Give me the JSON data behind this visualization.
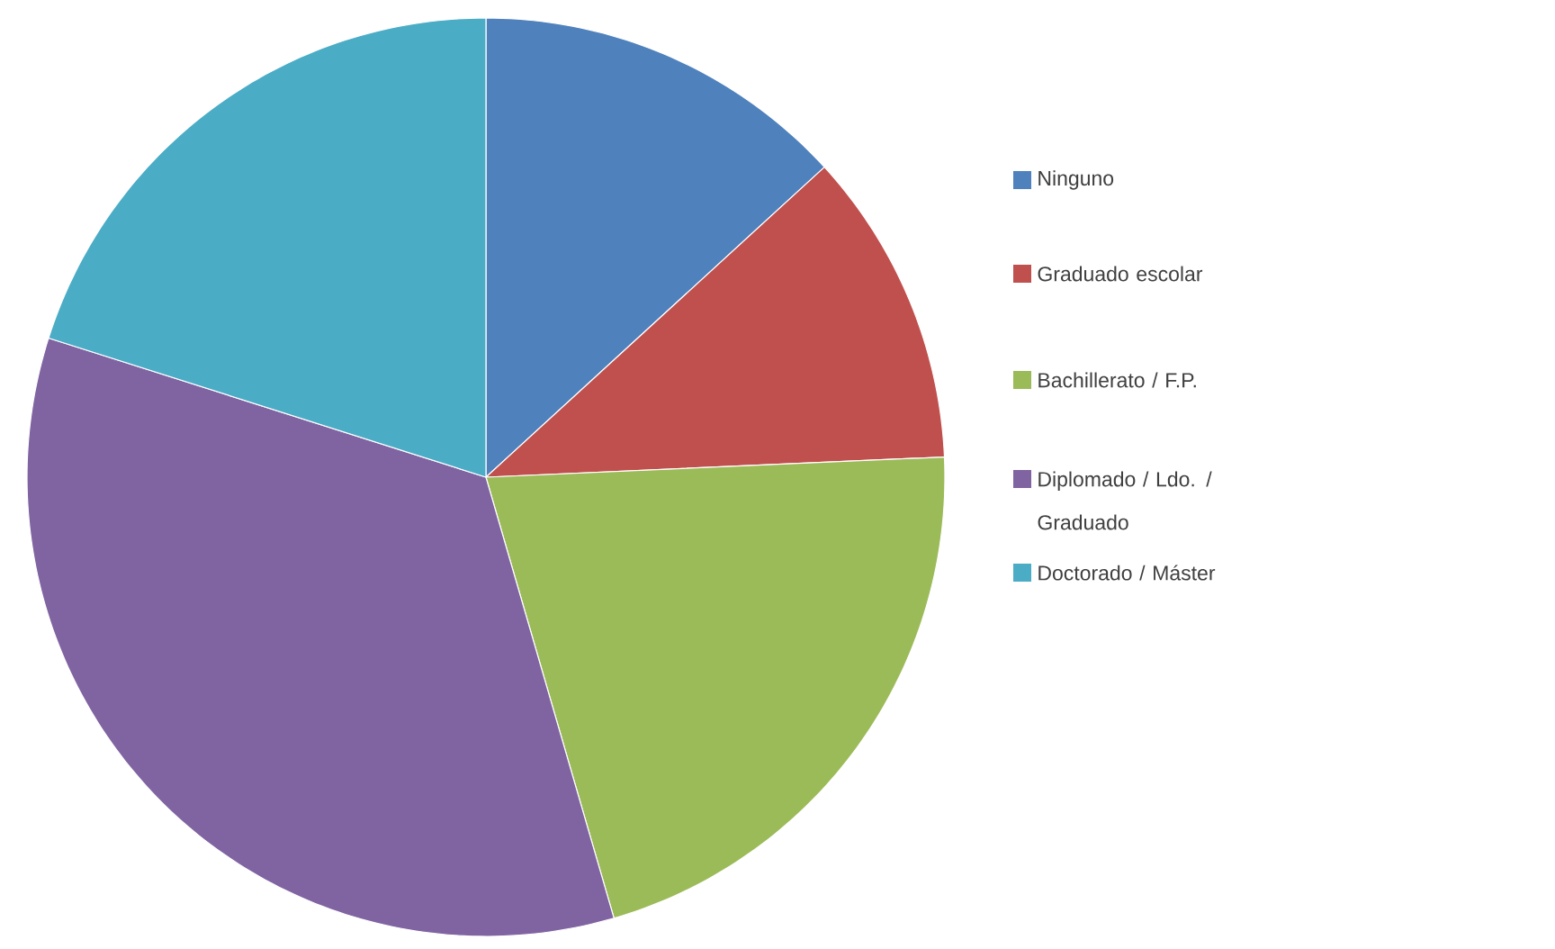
{
  "chart_data": {
    "type": "pie",
    "categories": [
      "Ninguno",
      "Graduado escolar",
      "Bachillerato / F.P.",
      "Diplomado / Ldo. / Graduado",
      "Doctorado / Máster"
    ],
    "values": [
      13.2,
      11.1,
      21.2,
      34.4,
      20.1
    ],
    "colors": [
      "#4f81bd",
      "#c0504d",
      "#9bbb59",
      "#8064a2",
      "#4bacc6"
    ],
    "legend": "right"
  }
}
